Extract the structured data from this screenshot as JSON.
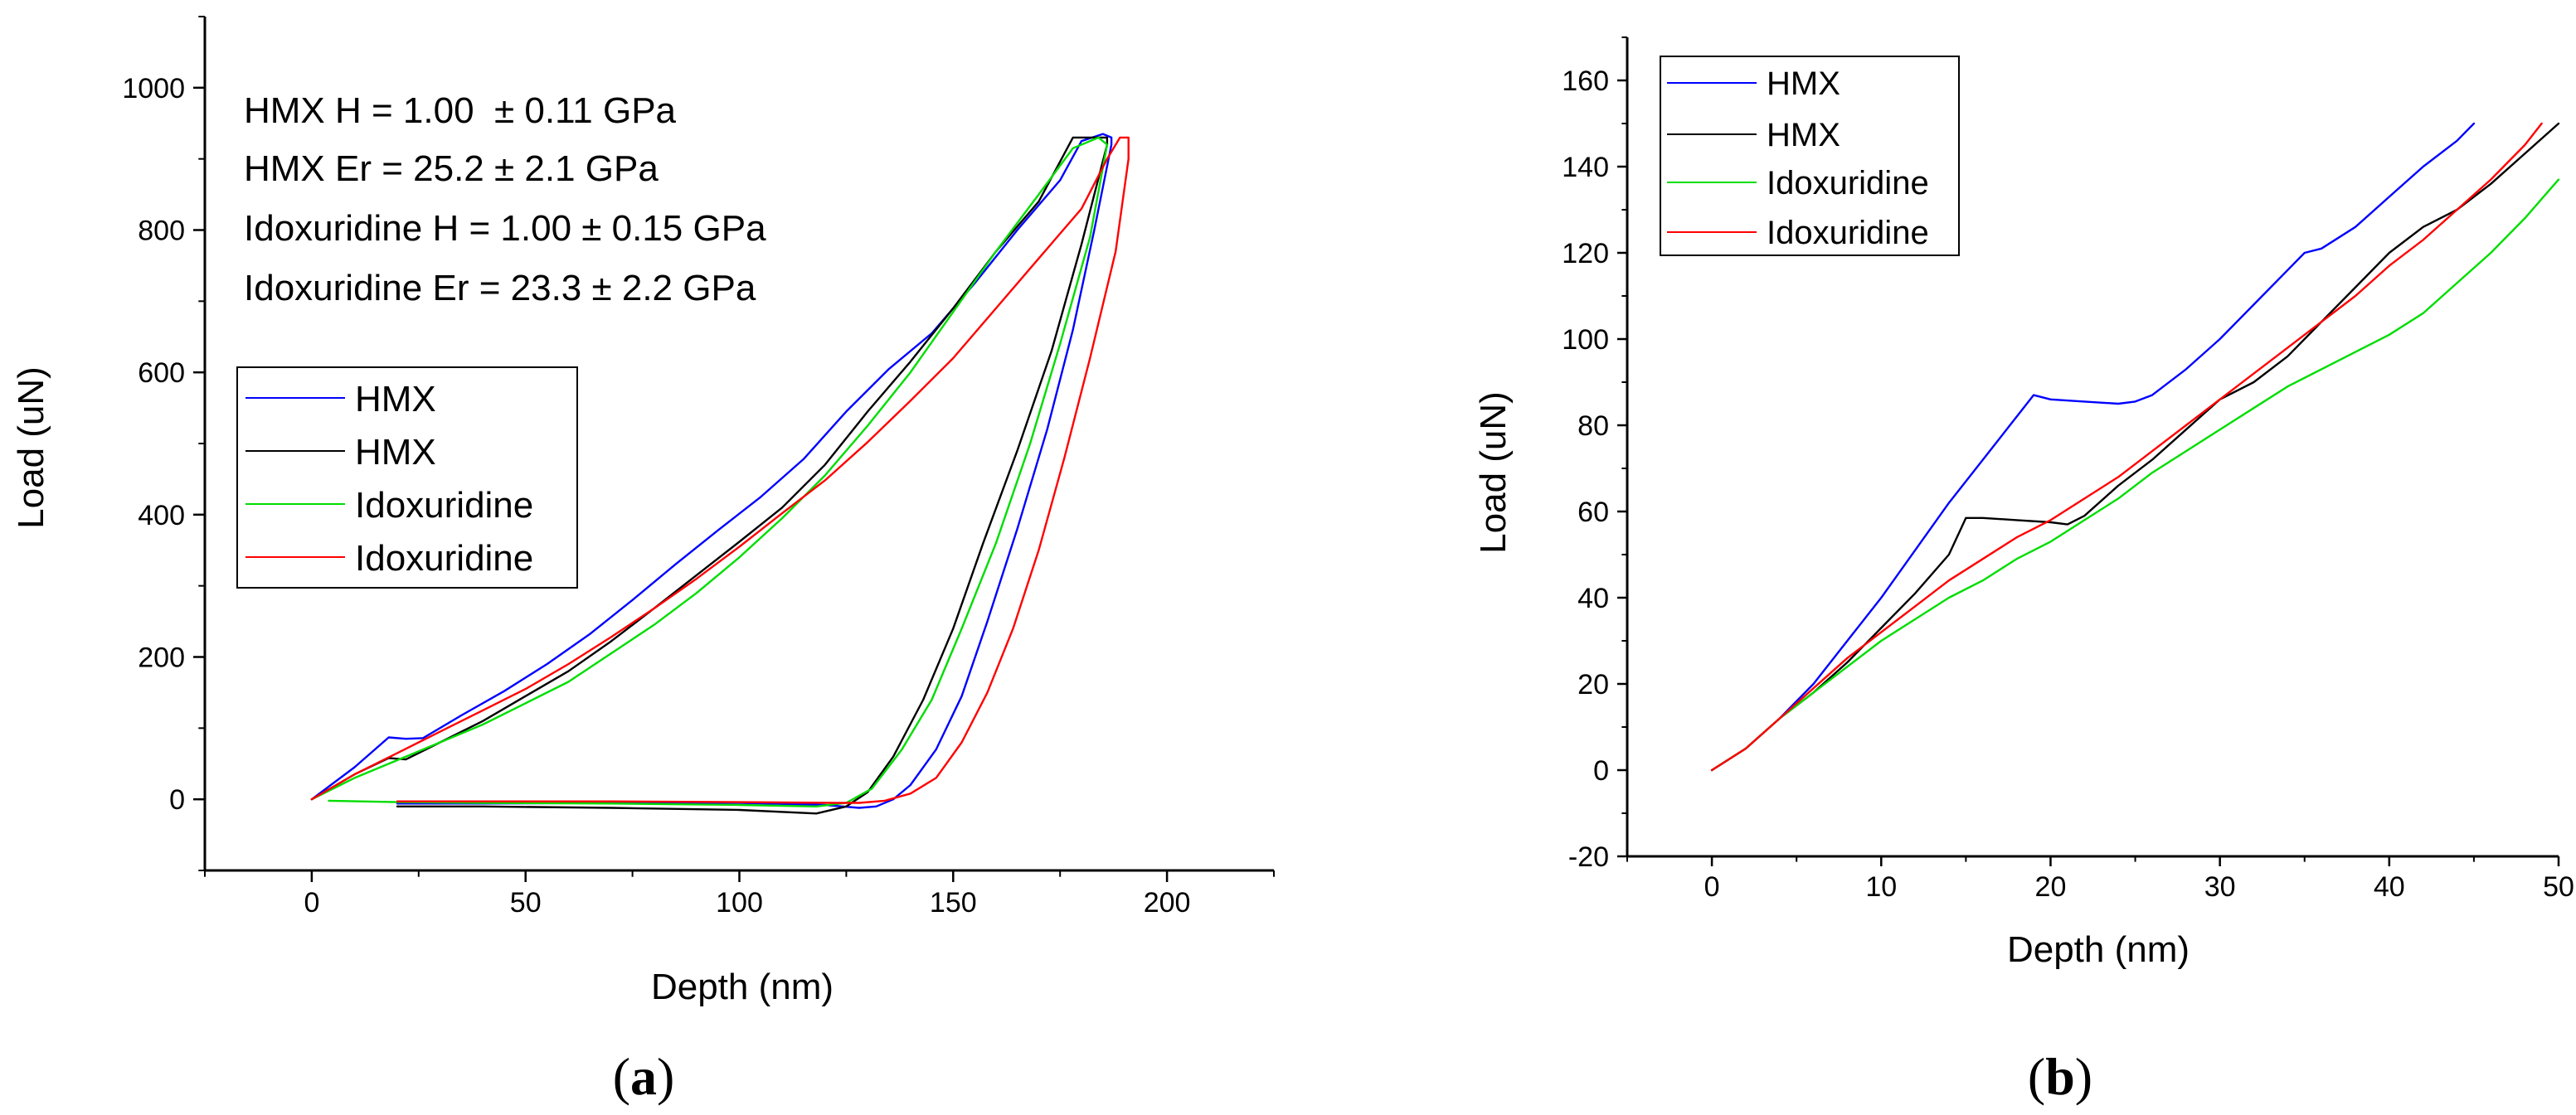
{
  "chart_data": [
    {
      "panel": "(a)",
      "panel_letter": "a",
      "type": "line",
      "xlabel": "Depth (nm)",
      "ylabel": "Load (uN)",
      "xlim": [
        -25,
        225
      ],
      "ylim": [
        -100,
        1100
      ],
      "xticks": [
        0,
        50,
        100,
        150,
        200
      ],
      "yticks": [
        0,
        200,
        400,
        600,
        800,
        1000
      ],
      "annotations": [
        "HMX H = 1.00  ± 0.11 GPa",
        "HMX Er = 25.2 ± 2.1 GPa",
        "Idoxuridine H = 1.00 ± 0.15 GPa",
        "Idoxuridine Er = 23.3 ± 2.2 GPa"
      ],
      "legend": {
        "location": "center-left"
      },
      "series": [
        {
          "name": "HMX",
          "color": "#0000ff",
          "x": [
            0,
            10,
            18,
            22,
            26,
            35,
            45,
            55,
            65,
            75,
            85,
            95,
            105,
            115,
            125,
            135,
            145,
            155,
            165,
            175,
            180,
            185,
            187,
            187,
            183,
            178,
            172,
            165,
            158,
            152,
            146,
            140,
            136,
            132,
            128,
            120,
            100,
            70,
            40,
            20
          ],
          "y": [
            0,
            45,
            87,
            85,
            86,
            118,
            152,
            190,
            232,
            280,
            330,
            378,
            425,
            478,
            545,
            605,
            655,
            725,
            800,
            870,
            925,
            935,
            930,
            920,
            800,
            660,
            520,
            380,
            250,
            145,
            70,
            20,
            0,
            -10,
            -12,
            -8,
            -5,
            -5,
            -6,
            -6
          ]
        },
        {
          "name": "HMX",
          "color": "#000000",
          "x": [
            0,
            10,
            18,
            22,
            30,
            40,
            50,
            60,
            70,
            80,
            90,
            100,
            110,
            120,
            130,
            140,
            150,
            160,
            170,
            178,
            182,
            186,
            186,
            180,
            173,
            165,
            157,
            150,
            143,
            136,
            130,
            125,
            118,
            100,
            70,
            40,
            20
          ],
          "y": [
            0,
            35,
            58,
            56,
            80,
            110,
            145,
            180,
            222,
            268,
            315,
            362,
            410,
            470,
            545,
            615,
            690,
            770,
            840,
            930,
            930,
            930,
            920,
            780,
            630,
            490,
            360,
            240,
            140,
            60,
            10,
            -10,
            -20,
            -15,
            -12,
            -10,
            -10
          ]
        },
        {
          "name": "Idoxuridine",
          "color": "#00dd00",
          "x": [
            0,
            10,
            20,
            30,
            40,
            50,
            60,
            70,
            80,
            90,
            100,
            110,
            120,
            130,
            140,
            150,
            160,
            170,
            178,
            184,
            186,
            182,
            175,
            168,
            160,
            152,
            145,
            138,
            131,
            125,
            118,
            100,
            70,
            40,
            20,
            4
          ],
          "y": [
            0,
            30,
            55,
            80,
            105,
            135,
            165,
            205,
            245,
            290,
            340,
            395,
            455,
            525,
            600,
            685,
            770,
            850,
            915,
            930,
            920,
            790,
            640,
            500,
            360,
            240,
            140,
            70,
            15,
            -5,
            -10,
            -8,
            -6,
            -5,
            -4,
            -2
          ]
        },
        {
          "name": "Idoxuridine",
          "color": "#ff0000",
          "x": [
            0,
            10,
            20,
            30,
            40,
            50,
            60,
            70,
            80,
            90,
            100,
            110,
            120,
            130,
            140,
            150,
            160,
            170,
            180,
            186,
            189,
            191,
            191,
            188,
            182,
            176,
            170,
            164,
            158,
            152,
            146,
            140,
            134,
            128,
            122,
            100,
            70,
            40,
            20
          ],
          "y": [
            0,
            35,
            65,
            95,
            125,
            155,
            190,
            228,
            268,
            310,
            355,
            402,
            448,
            502,
            560,
            620,
            690,
            760,
            830,
            900,
            930,
            930,
            900,
            770,
            620,
            480,
            350,
            240,
            150,
            80,
            30,
            8,
            -2,
            -5,
            -5,
            -4,
            -3,
            -3,
            -3
          ]
        }
      ]
    },
    {
      "panel": "(b)",
      "panel_letter": "b",
      "type": "line",
      "xlabel": "Depth (nm)",
      "ylabel": "Load (uN)",
      "xlim": [
        -5,
        50
      ],
      "ylim": [
        -20,
        170
      ],
      "xticks": [
        0,
        10,
        20,
        30,
        40,
        50
      ],
      "yticks": [
        -20,
        0,
        20,
        40,
        60,
        80,
        100,
        120,
        140,
        160
      ],
      "legend": {
        "location": "top-left"
      },
      "series": [
        {
          "name": "HMX",
          "color": "#0000ff",
          "x": [
            0,
            2,
            4,
            6,
            8,
            10,
            12,
            14,
            16,
            18,
            19,
            20,
            22,
            24,
            25,
            26,
            28,
            30,
            32,
            34,
            35,
            36,
            38,
            40,
            42,
            44,
            45
          ],
          "y": [
            0,
            5,
            12,
            20,
            30,
            40,
            51,
            62,
            72,
            82,
            87,
            86,
            85.5,
            85,
            85.5,
            87,
            93,
            100,
            108,
            116,
            120,
            121,
            126,
            133,
            140,
            146,
            150
          ]
        },
        {
          "name": "HMX",
          "color": "#000000",
          "x": [
            0,
            2,
            4,
            6,
            8,
            10,
            12,
            14,
            15,
            16,
            18,
            20,
            21,
            22,
            24,
            26,
            28,
            30,
            32,
            34,
            36,
            38,
            40,
            42,
            44,
            46,
            48,
            50
          ],
          "y": [
            0,
            5,
            12,
            18,
            25,
            33,
            41,
            50,
            58.5,
            58.5,
            58,
            57.5,
            57,
            59,
            66,
            72,
            79,
            86,
            90,
            96,
            104,
            112,
            120,
            126,
            130,
            136,
            143,
            150
          ]
        },
        {
          "name": "Idoxuridine",
          "color": "#00dd00",
          "x": [
            0,
            2,
            4,
            6,
            8,
            10,
            12,
            14,
            16,
            18,
            20,
            22,
            24,
            26,
            28,
            30,
            32,
            34,
            36,
            38,
            40,
            42,
            44,
            46,
            48,
            50
          ],
          "y": [
            0,
            5,
            12,
            18,
            24,
            30,
            35,
            40,
            44,
            49,
            53,
            58,
            63,
            69,
            74,
            79,
            84,
            89,
            93,
            97,
            101,
            106,
            113,
            120,
            128,
            137
          ]
        },
        {
          "name": "Idoxuridine",
          "color": "#ff0000",
          "x": [
            0,
            2,
            4,
            6,
            8,
            10,
            12,
            14,
            16,
            18,
            20,
            22,
            24,
            26,
            28,
            30,
            32,
            34,
            36,
            38,
            40,
            42,
            44,
            46,
            48,
            49
          ],
          "y": [
            0,
            5,
            12,
            19,
            26,
            32,
            38,
            44,
            49,
            54,
            58,
            63,
            68,
            74,
            80,
            86,
            92,
            98,
            104,
            110,
            117,
            123,
            130,
            137,
            145,
            150
          ]
        }
      ]
    }
  ]
}
